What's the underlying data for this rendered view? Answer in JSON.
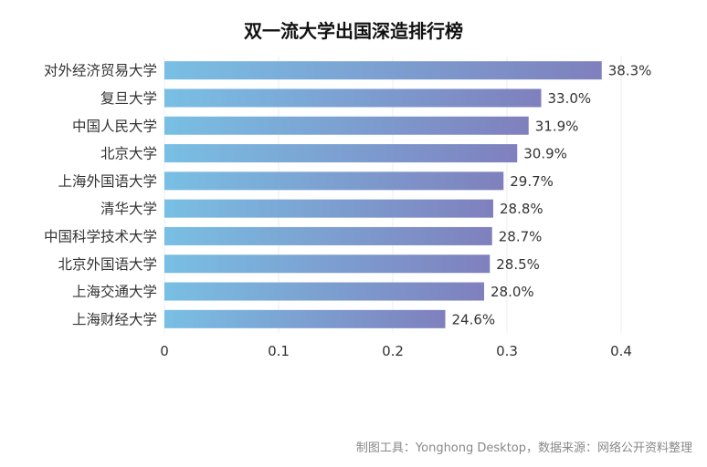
{
  "chart_data": {
    "type": "bar",
    "orientation": "horizontal",
    "title": "双一流大学出国深造排行榜",
    "categories": [
      "对外经济贸易大学",
      "复旦大学",
      "中国人民大学",
      "北京大学",
      "上海外国语大学",
      "清华大学",
      "中国科学技术大学",
      "北京外国语大学",
      "上海交通大学",
      "上海财经大学"
    ],
    "values": [
      0.383,
      0.33,
      0.319,
      0.309,
      0.297,
      0.288,
      0.287,
      0.285,
      0.28,
      0.246
    ],
    "data_labels": [
      "38.3%",
      "33.0%",
      "31.9%",
      "30.9%",
      "29.7%",
      "28.8%",
      "28.7%",
      "28.5%",
      "28.0%",
      "24.6%"
    ],
    "x_ticks": [
      0,
      0.1,
      0.2,
      0.3,
      0.4
    ],
    "x_tick_labels": [
      "0",
      "0.1",
      "0.2",
      "0.3",
      "0.4"
    ],
    "xlim": [
      0,
      0.4
    ],
    "grid": true,
    "colors": {
      "bar_start": "#79BFE4",
      "bar_end": "#7F80BD",
      "grid": "#ECECEC"
    }
  },
  "footer": {
    "source": "制图工具：Yonghong Desktop，数据来源：网络公开资料整理"
  }
}
